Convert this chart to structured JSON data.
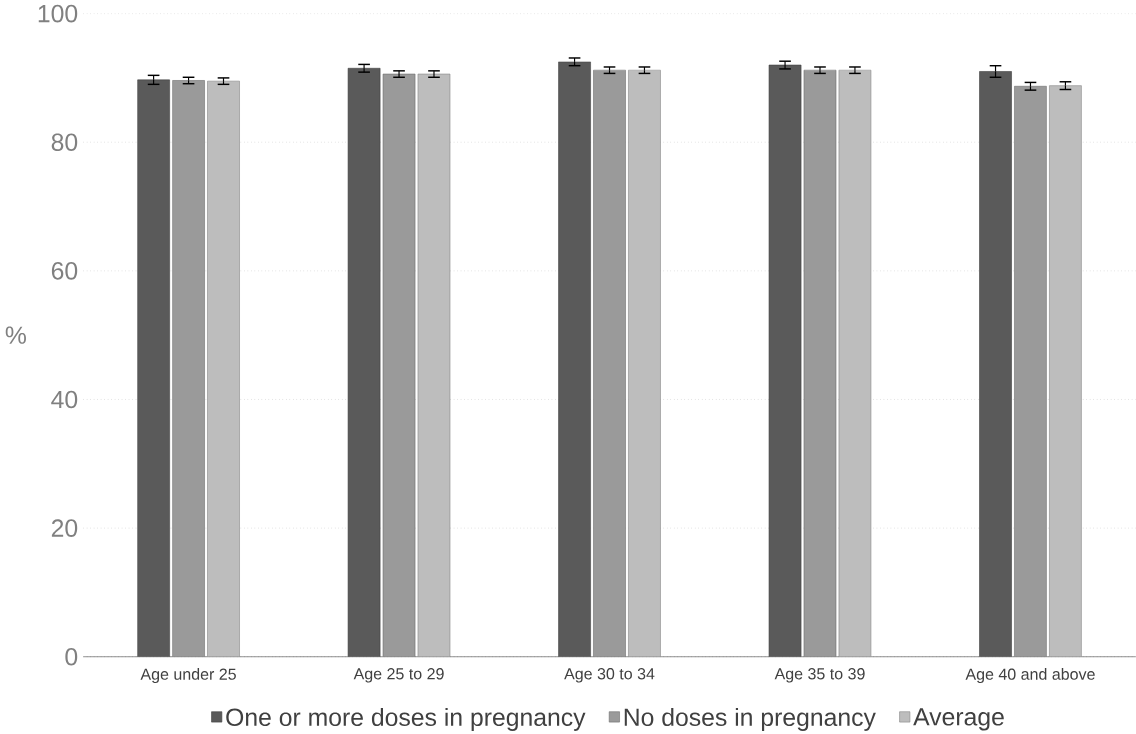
{
  "chart_data": {
    "type": "bar",
    "ylabel": "%",
    "categories": [
      "Age under 25",
      "Age 25 to 29",
      "Age 30 to 34",
      "Age 35 to 39",
      "Age 40 and above"
    ],
    "series": [
      {
        "name": "One or more doses in pregnancy",
        "color": "#5a5a5a",
        "values": [
          89.7,
          91.5,
          92.5,
          92,
          91
        ],
        "errors": [
          0.7,
          0.6,
          0.6,
          0.6,
          0.9
        ]
      },
      {
        "name": "No doses in pregnancy",
        "color": "#9a9a9a",
        "values": [
          89.6,
          90.6,
          91.2,
          91.2,
          88.7
        ],
        "errors": [
          0.5,
          0.5,
          0.5,
          0.5,
          0.6
        ]
      },
      {
        "name": "Average",
        "color": "#bdbdbd",
        "values": [
          89.5,
          90.6,
          91.2,
          91.2,
          88.8
        ],
        "errors": [
          0.5,
          0.5,
          0.5,
          0.5,
          0.6
        ]
      }
    ],
    "ylim": [
      0,
      100
    ],
    "yticks": [
      0,
      20,
      40,
      60,
      80,
      100
    ],
    "grid": "y",
    "legend": "bottom"
  }
}
